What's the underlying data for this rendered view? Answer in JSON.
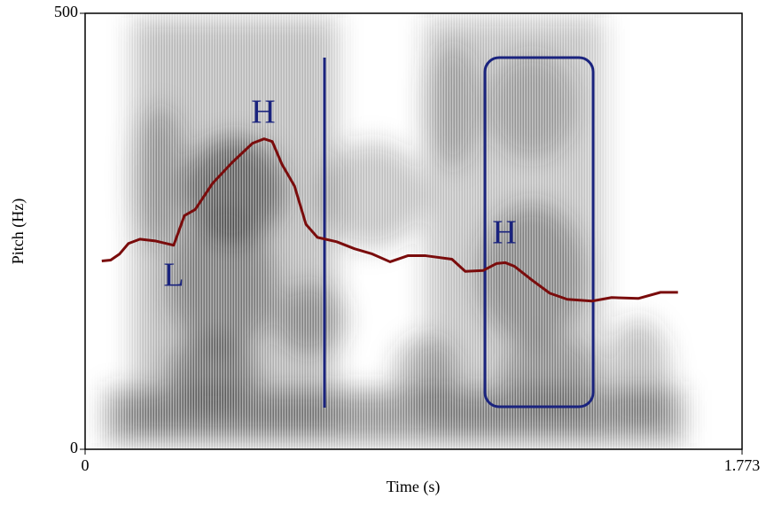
{
  "chart_data": {
    "type": "line",
    "xlabel": "Time (s)",
    "ylabel": "Pitch (Hz)",
    "annotations": [
      "L",
      "H",
      "H"
    ],
    "xlim": [
      0,
      1.773
    ],
    "xticks": [
      0,
      1.773
    ],
    "ylim": [
      0,
      500
    ],
    "yticks": [
      0,
      500
    ],
    "series": [
      {
        "name": "Pitch",
        "color": "#7a0c0c",
        "x": [
          0.045,
          0.069,
          0.093,
          0.117,
          0.148,
          0.189,
          0.239,
          0.268,
          0.297,
          0.344,
          0.397,
          0.452,
          0.483,
          0.505,
          0.531,
          0.565,
          0.596,
          0.627,
          0.679,
          0.727,
          0.775,
          0.823,
          0.871,
          0.919,
          0.99,
          1.026,
          1.074,
          1.11,
          1.134,
          1.158,
          1.206,
          1.254,
          1.301,
          1.368,
          1.421,
          1.493,
          1.553,
          1.6
        ],
        "values": [
          216,
          217,
          224,
          236,
          241,
          239,
          234,
          268,
          275,
          305,
          329,
          351,
          356,
          353,
          327,
          302,
          258,
          243,
          238,
          230,
          224,
          215,
          222,
          222,
          218,
          204,
          205,
          213,
          214,
          210,
          194,
          179,
          172,
          170,
          174,
          173,
          180,
          180
        ]
      }
    ]
  }
}
